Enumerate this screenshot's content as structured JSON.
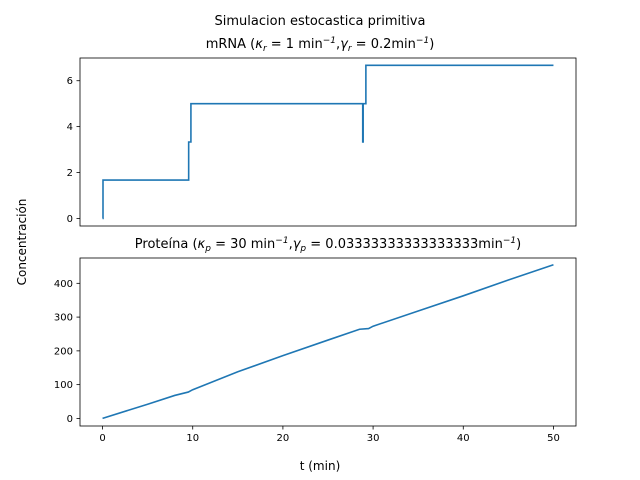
{
  "figure": {
    "suptitle": "Simulacion estocastica primitiva",
    "ylabel": "Concentración",
    "xlabel": "t (min)"
  },
  "colors": {
    "line": "#1f77b4",
    "axes": "#000000"
  },
  "chart_data": [
    {
      "type": "line",
      "title": "mRNA (κr = 1 min⁻¹, γr = 0.2min⁻¹)",
      "title_parts": {
        "prefix": "mRNA (",
        "k_sym": "κ",
        "k_sub": "r",
        "k_val": " = 1 min",
        "sep": ",",
        "g_sym": "γ",
        "g_sub": "r",
        "g_val": " = 0.2min",
        "exp": "−1",
        "suffix": ")"
      },
      "xlim": [
        -2.5,
        52.5
      ],
      "ylim": [
        -0.33,
        6.99
      ],
      "yticks": [
        0,
        2,
        4,
        6
      ],
      "xticks": [],
      "grid": false,
      "series": [
        {
          "step": true,
          "x": [
            0,
            0.05,
            9.5,
            9.55,
            9.8,
            28.8,
            28.85,
            28.9,
            29.2,
            50
          ],
          "y": [
            0,
            1.67,
            1.67,
            3.33,
            5.0,
            5.0,
            3.33,
            5.0,
            6.67,
            6.67
          ]
        }
      ]
    },
    {
      "type": "line",
      "title": "Proteína (κp = 30 min⁻¹, γp = 0.03333333333333333min⁻¹)",
      "title_parts": {
        "prefix": "Proteína (",
        "k_sym": "κ",
        "k_sub": "p",
        "k_val": " = 30 min",
        "sep": ",",
        "g_sym": "γ",
        "g_sub": "p",
        "g_val": " = 0.03333333333333333min",
        "exp": "−1",
        "suffix": ")"
      },
      "xlim": [
        -2.5,
        52.5
      ],
      "ylim": [
        -22.5,
        475
      ],
      "yticks": [
        0,
        100,
        200,
        300,
        400
      ],
      "xticks": [
        0,
        10,
        20,
        30,
        40,
        50
      ],
      "grid": false,
      "series": [
        {
          "step": false,
          "x": [
            0,
            5,
            8,
            9.5,
            10,
            15,
            20,
            25,
            28.5,
            29.5,
            30,
            35,
            40,
            45,
            50
          ],
          "y": [
            0,
            42,
            68,
            78,
            85,
            138,
            186,
            232,
            264,
            266,
            273,
            318,
            363,
            410,
            455
          ]
        }
      ]
    }
  ]
}
